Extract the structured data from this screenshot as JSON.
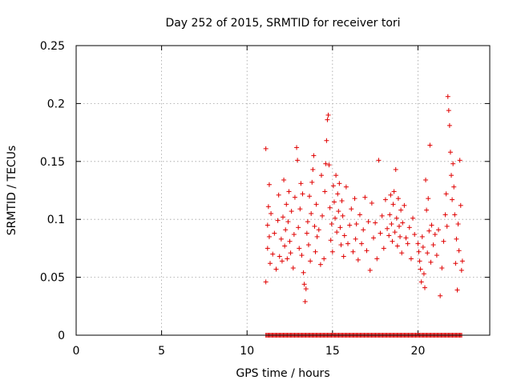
{
  "chart_data": {
    "type": "scatter",
    "title": "Day 252 of 2015, SRMTID for receiver tori",
    "xlabel": "GPS time / hours",
    "ylabel": "SRMTID / TECUs",
    "xlim": [
      0,
      24.2
    ],
    "ylim": [
      0,
      0.25
    ],
    "xticks": [
      0,
      5,
      10,
      15,
      20
    ],
    "yticks": [
      0,
      0.05,
      0.1,
      0.15,
      0.2,
      0.25
    ],
    "xtick_labels": [
      "0",
      "5",
      "10",
      "15",
      "20"
    ],
    "ytick_labels": [
      "0",
      "0.05",
      "0.1",
      "0.15",
      "0.2",
      "0.25"
    ],
    "grid": true,
    "marker": "plus",
    "series_color": "#e00000",
    "series": [
      {
        "points": [
          [
            11.1,
            0.161
          ],
          [
            11.1,
            0.046
          ],
          [
            11.2,
            0.075
          ],
          [
            11.2,
            0.095
          ],
          [
            11.25,
            0.111
          ],
          [
            11.3,
            0.13
          ],
          [
            11.3,
            0.085
          ],
          [
            11.35,
            0.062
          ],
          [
            11.4,
            0.105
          ],
          [
            11.5,
            0.07
          ],
          [
            11.6,
            0.088
          ],
          [
            11.7,
            0.057
          ],
          [
            11.8,
            0.099
          ],
          [
            11.85,
            0.121
          ],
          [
            11.9,
            0.068
          ],
          [
            12.0,
            0.083
          ],
          [
            12.05,
            0.064
          ],
          [
            12.1,
            0.102
          ],
          [
            12.15,
            0.134
          ],
          [
            12.2,
            0.077
          ],
          [
            12.25,
            0.091
          ],
          [
            12.3,
            0.113
          ],
          [
            12.35,
            0.066
          ],
          [
            12.4,
            0.098
          ],
          [
            12.45,
            0.124
          ],
          [
            12.5,
            0.081
          ],
          [
            12.55,
            0.071
          ],
          [
            12.6,
            0.107
          ],
          [
            12.7,
            0.058
          ],
          [
            12.75,
            0.087
          ],
          [
            12.8,
            0.119
          ],
          [
            12.9,
            0.162
          ],
          [
            12.95,
            0.151
          ],
          [
            13.0,
            0.093
          ],
          [
            13.05,
            0.075
          ],
          [
            13.1,
            0.109
          ],
          [
            13.15,
            0.131
          ],
          [
            13.2,
            0.069
          ],
          [
            13.25,
            0.122
          ],
          [
            13.3,
            0.054
          ],
          [
            13.35,
            0.044
          ],
          [
            13.4,
            0.029
          ],
          [
            13.45,
            0.04
          ],
          [
            13.5,
            0.088
          ],
          [
            13.55,
            0.098
          ],
          [
            13.6,
            0.078
          ],
          [
            13.65,
            0.12
          ],
          [
            13.7,
            0.064
          ],
          [
            13.75,
            0.105
          ],
          [
            13.8,
            0.132
          ],
          [
            13.85,
            0.143
          ],
          [
            13.9,
            0.155
          ],
          [
            13.95,
            0.094
          ],
          [
            14.0,
            0.072
          ],
          [
            14.05,
            0.113
          ],
          [
            14.1,
            0.085
          ],
          [
            14.2,
            0.091
          ],
          [
            14.3,
            0.061
          ],
          [
            14.35,
            0.138
          ],
          [
            14.4,
            0.103
          ],
          [
            14.5,
            0.066
          ],
          [
            14.55,
            0.124
          ],
          [
            14.6,
            0.148
          ],
          [
            14.65,
            0.168
          ],
          [
            14.7,
            0.186
          ],
          [
            14.75,
            0.19
          ],
          [
            14.8,
            0.147
          ],
          [
            14.85,
            0.11
          ],
          [
            14.9,
            0.082
          ],
          [
            14.95,
            0.096
          ],
          [
            15.0,
            0.072
          ],
          [
            15.05,
            0.129
          ],
          [
            15.1,
            0.115
          ],
          [
            15.15,
            0.101
          ],
          [
            15.2,
            0.138
          ],
          [
            15.25,
            0.089
          ],
          [
            15.3,
            0.122
          ],
          [
            15.35,
            0.107
          ],
          [
            15.4,
            0.131
          ],
          [
            15.45,
            0.093
          ],
          [
            15.5,
            0.078
          ],
          [
            15.55,
            0.116
          ],
          [
            15.6,
            0.103
          ],
          [
            15.65,
            0.068
          ],
          [
            15.7,
            0.086
          ],
          [
            15.8,
            0.128
          ],
          [
            15.9,
            0.079
          ],
          [
            16.0,
            0.095
          ],
          [
            16.1,
            0.109
          ],
          [
            16.2,
            0.072
          ],
          [
            16.3,
            0.118
          ],
          [
            16.35,
            0.083
          ],
          [
            16.4,
            0.096
          ],
          [
            16.5,
            0.065
          ],
          [
            16.6,
            0.104
          ],
          [
            16.7,
            0.079
          ],
          [
            16.8,
            0.091
          ],
          [
            16.9,
            0.119
          ],
          [
            17.0,
            0.073
          ],
          [
            17.1,
            0.098
          ],
          [
            17.2,
            0.056
          ],
          [
            17.3,
            0.114
          ],
          [
            17.4,
            0.084
          ],
          [
            17.5,
            0.097
          ],
          [
            17.6,
            0.066
          ],
          [
            17.7,
            0.151
          ],
          [
            17.8,
            0.088
          ],
          [
            17.9,
            0.103
          ],
          [
            18.0,
            0.075
          ],
          [
            18.1,
            0.117
          ],
          [
            18.2,
            0.092
          ],
          [
            18.3,
            0.086
          ],
          [
            18.35,
            0.104
          ],
          [
            18.4,
            0.121
          ],
          [
            18.45,
            0.096
          ],
          [
            18.5,
            0.081
          ],
          [
            18.55,
            0.113
          ],
          [
            18.6,
            0.124
          ],
          [
            18.65,
            0.089
          ],
          [
            18.7,
            0.143
          ],
          [
            18.75,
            0.101
          ],
          [
            18.8,
            0.077
          ],
          [
            18.85,
            0.118
          ],
          [
            18.9,
            0.094
          ],
          [
            18.95,
            0.085
          ],
          [
            19.0,
            0.108
          ],
          [
            19.05,
            0.071
          ],
          [
            19.1,
            0.097
          ],
          [
            19.2,
            0.112
          ],
          [
            19.3,
            0.084
          ],
          [
            19.4,
            0.079
          ],
          [
            19.5,
            0.093
          ],
          [
            19.6,
            0.066
          ],
          [
            19.7,
            0.101
          ],
          [
            19.8,
            0.087
          ],
          [
            20.0,
            0.079
          ],
          [
            20.05,
            0.072
          ],
          [
            20.1,
            0.064
          ],
          [
            20.15,
            0.057
          ],
          [
            20.2,
            0.046
          ],
          [
            20.25,
            0.085
          ],
          [
            20.3,
            0.076
          ],
          [
            20.35,
            0.053
          ],
          [
            20.4,
            0.041
          ],
          [
            20.45,
            0.134
          ],
          [
            20.5,
            0.108
          ],
          [
            20.55,
            0.071
          ],
          [
            20.6,
            0.118
          ],
          [
            20.65,
            0.09
          ],
          [
            20.7,
            0.164
          ],
          [
            20.75,
            0.063
          ],
          [
            20.8,
            0.095
          ],
          [
            20.9,
            0.078
          ],
          [
            21.0,
            0.087
          ],
          [
            21.1,
            0.069
          ],
          [
            21.2,
            0.091
          ],
          [
            21.3,
            0.034
          ],
          [
            21.4,
            0.058
          ],
          [
            21.5,
            0.081
          ],
          [
            21.6,
            0.104
          ],
          [
            21.65,
            0.122
          ],
          [
            21.7,
            0.094
          ],
          [
            21.75,
            0.206
          ],
          [
            21.8,
            0.194
          ],
          [
            21.85,
            0.181
          ],
          [
            21.9,
            0.158
          ],
          [
            21.95,
            0.138
          ],
          [
            22.0,
            0.117
          ],
          [
            22.05,
            0.148
          ],
          [
            22.1,
            0.128
          ],
          [
            22.15,
            0.104
          ],
          [
            22.2,
            0.062
          ],
          [
            22.25,
            0.083
          ],
          [
            22.3,
            0.039
          ],
          [
            22.35,
            0.096
          ],
          [
            22.4,
            0.073
          ],
          [
            22.45,
            0.151
          ],
          [
            22.5,
            0.112
          ],
          [
            22.55,
            0.056
          ],
          [
            22.6,
            0.064
          ]
        ]
      }
    ],
    "zero_band": {
      "y": 0,
      "x_from": 11.1,
      "x_to": 22.6,
      "step": 0.06
    }
  }
}
